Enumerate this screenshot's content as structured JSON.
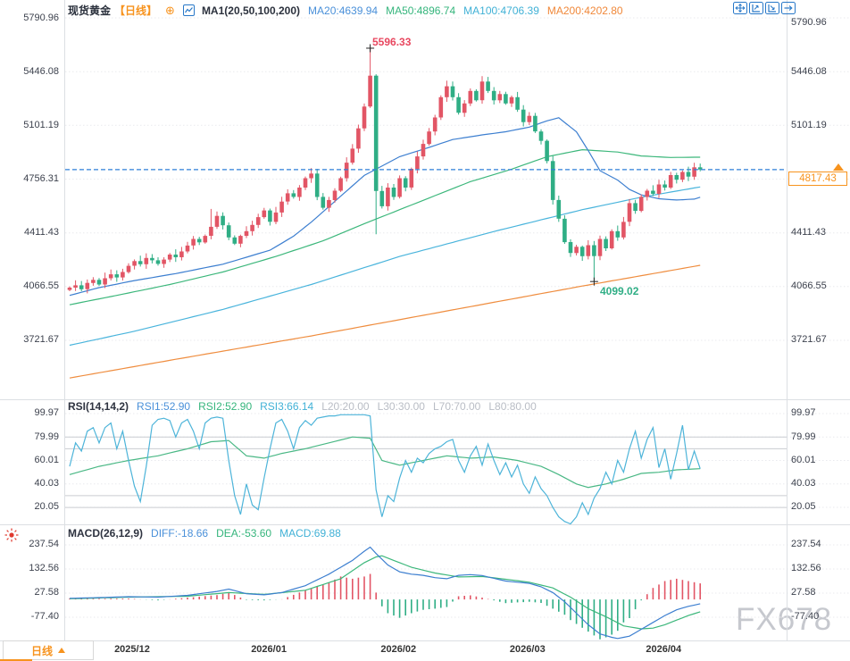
{
  "header": {
    "title": "现货黄金",
    "period": "【日线】",
    "plus_icon": "⊕",
    "ma_group": "MA1(20,50,100,200)",
    "ma20_label": "MA20:4639.94",
    "ma50_label": "MA50:4896.74",
    "ma100_label": "MA100:4706.39",
    "ma200_label": "MA200:4202.80"
  },
  "rsi_header": {
    "name": "RSI(14,14,2)",
    "rsi1": "RSI1:52.90",
    "rsi2": "RSI2:52.90",
    "rsi3": "RSI3:66.14",
    "l20": "L20:20.00",
    "l30": "L30:30.00",
    "l70": "L70:70.00",
    "l80": "L80:80.00"
  },
  "macd_header": {
    "name": "MACD(26,12,9)",
    "diff": "DIFF:-18.66",
    "dea": "DEA:-53.60",
    "macd": "MACD:69.88"
  },
  "axes": {
    "main_ticks": [
      "5790.96",
      "5446.08",
      "5101.19",
      "4756.31",
      "4411.43",
      "4066.55",
      "3721.67"
    ],
    "rsi_ticks": [
      "99.97",
      "79.99",
      "60.01",
      "40.03",
      "20.05"
    ],
    "macd_ticks": [
      "237.54",
      "132.56",
      "27.58",
      "-77.40"
    ]
  },
  "annotations": {
    "high": "5596.33",
    "low": "4099.02"
  },
  "price_tag": {
    "value": "4817.43"
  },
  "footer": {
    "period_button": "日线",
    "watermark": "FX678"
  },
  "colors": {
    "accent": "#f7931e",
    "candle_up": "#e25565",
    "candle_down": "#2fae85",
    "ma20": "#3d7fd0",
    "ma50": "#3cb77b",
    "ma100": "#49b4dc",
    "ma200": "#ef8d3f",
    "rsi_fast": "#4db4d9",
    "rsi_slow": "#4ab885",
    "diff": "#3d7fd0",
    "dea": "#3cb77b",
    "price_line": "#2e7fd8",
    "grid_dot": "#e9eaee",
    "grid_solid": "#c9ccd1",
    "border": "#dcdfe3",
    "marker": "#222222"
  },
  "chart_data": {
    "type": "candlestick",
    "title": "现货黄金 日线 (Spot Gold Daily)",
    "price_axis": {
      "ticks": [
        5790.96,
        5446.08,
        5101.19,
        4756.31,
        4411.43,
        4066.55,
        3721.67
      ]
    },
    "rsi_axis": {
      "ticks": [
        99.97,
        79.99,
        60.01,
        40.03,
        20.05
      ],
      "levels": [
        80,
        70,
        30,
        20
      ]
    },
    "macd_axis": {
      "ticks": [
        237.54,
        132.56,
        27.58,
        -77.4
      ]
    },
    "current_price": 4817.43,
    "ma_values": {
      "ma20": 4639.94,
      "ma50": 4896.74,
      "ma100": 4706.39,
      "ma200": 4202.8
    },
    "rsi_values": {
      "rsi1": 52.9,
      "rsi2": 52.9,
      "rsi3": 66.14
    },
    "macd_values": {
      "diff": -18.66,
      "dea": -53.6,
      "macd": 69.88
    },
    "month_ticks": [
      {
        "label": "2025/12",
        "index": 10.6
      },
      {
        "label": "2026/01",
        "index": 33.8
      },
      {
        "label": "2026/02",
        "index": 55.8
      },
      {
        "label": "2026/03",
        "index": 77.7
      },
      {
        "label": "2026/04",
        "index": 100.8
      }
    ],
    "first_open": 4045,
    "open_rule": "previous_close",
    "closes": [
      4060,
      4075,
      4050,
      4090,
      4110,
      4080,
      4120,
      4145,
      4125,
      4160,
      4200,
      4230,
      4210,
      4250,
      4235,
      4212,
      4240,
      4272,
      4255,
      4292,
      4330,
      4372,
      4350,
      4392,
      4450,
      4520,
      4460,
      4382,
      4342,
      4392,
      4422,
      4462,
      4512,
      4555,
      4482,
      4542,
      4612,
      4665,
      4642,
      4702,
      4762,
      4792,
      4642,
      4572,
      4622,
      4682,
      4762,
      4862,
      4952,
      5082,
      5222,
      5420,
      4680,
      4582,
      4702,
      4642,
      4762,
      4702,
      4822,
      4902,
      4982,
      5062,
      5152,
      5282,
      5352,
      5282,
      5182,
      5242,
      5322,
      5262,
      5382,
      5322,
      5262,
      5302,
      5242,
      5282,
      5202,
      5122,
      5162,
      5062,
      5002,
      4872,
      4622,
      4502,
      4352,
      4282,
      4322,
      4262,
      4332,
      4262,
      4372,
      4312,
      4422,
      4382,
      4482,
      4602,
      4552,
      4642,
      4682,
      4662,
      4722,
      4702,
      4782,
      4752,
      4802,
      4772,
      4832,
      4817.43
    ],
    "special_wicks": {
      "24": {
        "high": 4565
      },
      "51": {
        "high": 5596.33
      },
      "52": {
        "low": 4402
      },
      "89": {
        "low": 4099.02
      }
    },
    "high_marker": {
      "index": 51,
      "price": 5596.33
    },
    "low_marker": {
      "index": 89,
      "price": 4099.02
    },
    "ma20_points": [
      [
        0,
        4010
      ],
      [
        5,
        4060
      ],
      [
        11,
        4105
      ],
      [
        18,
        4150
      ],
      [
        26,
        4210
      ],
      [
        34,
        4300
      ],
      [
        38,
        4390
      ],
      [
        41,
        4480
      ],
      [
        44,
        4580
      ],
      [
        47,
        4680
      ],
      [
        50,
        4780
      ],
      [
        53,
        4840
      ],
      [
        56,
        4900
      ],
      [
        61,
        4960
      ],
      [
        65,
        5010
      ],
      [
        70,
        5040
      ],
      [
        74,
        5060
      ],
      [
        78,
        5090
      ],
      [
        81,
        5130
      ],
      [
        83,
        5150
      ],
      [
        86,
        5060
      ],
      [
        88,
        4940
      ],
      [
        90,
        4810
      ],
      [
        93,
        4750
      ],
      [
        95,
        4690
      ],
      [
        97,
        4655
      ],
      [
        100,
        4630
      ],
      [
        103,
        4622
      ],
      [
        106,
        4628
      ],
      [
        107,
        4640
      ]
    ],
    "ma50_points": [
      [
        0,
        3950
      ],
      [
        8,
        4010
      ],
      [
        17,
        4080
      ],
      [
        26,
        4160
      ],
      [
        35,
        4260
      ],
      [
        43,
        4360
      ],
      [
        50,
        4470
      ],
      [
        56,
        4560
      ],
      [
        62,
        4650
      ],
      [
        68,
        4740
      ],
      [
        75,
        4820
      ],
      [
        81,
        4900
      ],
      [
        87,
        4945
      ],
      [
        93,
        4930
      ],
      [
        97,
        4905
      ],
      [
        102,
        4895
      ],
      [
        107,
        4897
      ]
    ],
    "ma100_points": [
      [
        0,
        3690
      ],
      [
        11,
        3780
      ],
      [
        26,
        3920
      ],
      [
        41,
        4080
      ],
      [
        56,
        4260
      ],
      [
        72,
        4420
      ],
      [
        87,
        4560
      ],
      [
        97,
        4640
      ],
      [
        107,
        4706
      ]
    ],
    "ma200_points": [
      [
        0,
        3480
      ],
      [
        18,
        3600
      ],
      [
        41,
        3750
      ],
      [
        64,
        3910
      ],
      [
        87,
        4070
      ],
      [
        107,
        4203
      ]
    ],
    "rsi_fast": [
      55,
      75,
      68,
      85,
      88,
      75,
      88,
      92,
      70,
      85,
      60,
      38,
      25,
      55,
      90,
      95,
      96,
      94,
      80,
      92,
      95,
      85,
      70,
      92,
      96,
      97,
      96,
      60,
      30,
      14,
      40,
      22,
      18,
      45,
      70,
      92,
      95,
      85,
      70,
      88,
      94,
      90,
      96,
      97,
      98,
      98,
      99,
      99,
      99,
      99,
      99,
      98,
      35,
      12,
      30,
      25,
      45,
      60,
      50,
      62,
      58,
      66,
      70,
      72,
      76,
      78,
      60,
      50,
      64,
      72,
      56,
      74,
      60,
      48,
      58,
      46,
      56,
      40,
      32,
      46,
      36,
      30,
      20,
      12,
      8,
      6,
      12,
      24,
      14,
      28,
      36,
      50,
      40,
      60,
      50,
      70,
      85,
      62,
      78,
      88,
      54,
      70,
      44,
      66,
      90,
      52,
      68,
      53
    ],
    "rsi_slow_points": [
      [
        0,
        48
      ],
      [
        5,
        55
      ],
      [
        10,
        60
      ],
      [
        15,
        64
      ],
      [
        20,
        70
      ],
      [
        24,
        76
      ],
      [
        27,
        77
      ],
      [
        30,
        64
      ],
      [
        33,
        62
      ],
      [
        36,
        66
      ],
      [
        40,
        70
      ],
      [
        44,
        75
      ],
      [
        48,
        80
      ],
      [
        51,
        79
      ],
      [
        53,
        60
      ],
      [
        56,
        56
      ],
      [
        60,
        60
      ],
      [
        64,
        64
      ],
      [
        68,
        62
      ],
      [
        72,
        63
      ],
      [
        76,
        60
      ],
      [
        80,
        55
      ],
      [
        83,
        48
      ],
      [
        86,
        40
      ],
      [
        88,
        37
      ],
      [
        91,
        40
      ],
      [
        94,
        44
      ],
      [
        97,
        49
      ],
      [
        100,
        50
      ],
      [
        103,
        52
      ],
      [
        107,
        53
      ]
    ],
    "diff_points": [
      [
        0,
        5
      ],
      [
        5,
        8
      ],
      [
        10,
        12
      ],
      [
        15,
        10
      ],
      [
        20,
        18
      ],
      [
        25,
        35
      ],
      [
        27,
        45
      ],
      [
        30,
        25
      ],
      [
        33,
        20
      ],
      [
        36,
        30
      ],
      [
        40,
        60
      ],
      [
        44,
        110
      ],
      [
        48,
        170
      ],
      [
        50,
        210
      ],
      [
        51,
        228
      ],
      [
        52,
        200
      ],
      [
        54,
        150
      ],
      [
        56,
        120
      ],
      [
        58,
        110
      ],
      [
        60,
        105
      ],
      [
        62,
        95
      ],
      [
        64,
        90
      ],
      [
        66,
        105
      ],
      [
        68,
        108
      ],
      [
        70,
        104
      ],
      [
        72,
        92
      ],
      [
        74,
        80
      ],
      [
        76,
        75
      ],
      [
        78,
        70
      ],
      [
        80,
        55
      ],
      [
        82,
        30
      ],
      [
        84,
        -10
      ],
      [
        86,
        -60
      ],
      [
        88,
        -110
      ],
      [
        90,
        -150
      ],
      [
        92,
        -165
      ],
      [
        93,
        -170
      ],
      [
        95,
        -160
      ],
      [
        97,
        -130
      ],
      [
        99,
        -100
      ],
      [
        101,
        -70
      ],
      [
        103,
        -45
      ],
      [
        105,
        -30
      ],
      [
        107,
        -18.66
      ]
    ],
    "dea_points": [
      [
        0,
        3
      ],
      [
        10,
        10
      ],
      [
        20,
        14
      ],
      [
        27,
        30
      ],
      [
        33,
        22
      ],
      [
        40,
        40
      ],
      [
        46,
        90
      ],
      [
        50,
        160
      ],
      [
        52,
        185
      ],
      [
        53,
        190
      ],
      [
        55,
        170
      ],
      [
        58,
        140
      ],
      [
        62,
        115
      ],
      [
        66,
        98
      ],
      [
        70,
        100
      ],
      [
        74,
        88
      ],
      [
        78,
        75
      ],
      [
        82,
        50
      ],
      [
        85,
        10
      ],
      [
        88,
        -40
      ],
      [
        91,
        -75
      ],
      [
        94,
        -115
      ],
      [
        97,
        -128
      ],
      [
        99,
        -125
      ],
      [
        101,
        -110
      ],
      [
        103,
        -90
      ],
      [
        105,
        -70
      ],
      [
        107,
        -53.6
      ]
    ],
    "histogram_rule": "2*(diff-dea)"
  }
}
